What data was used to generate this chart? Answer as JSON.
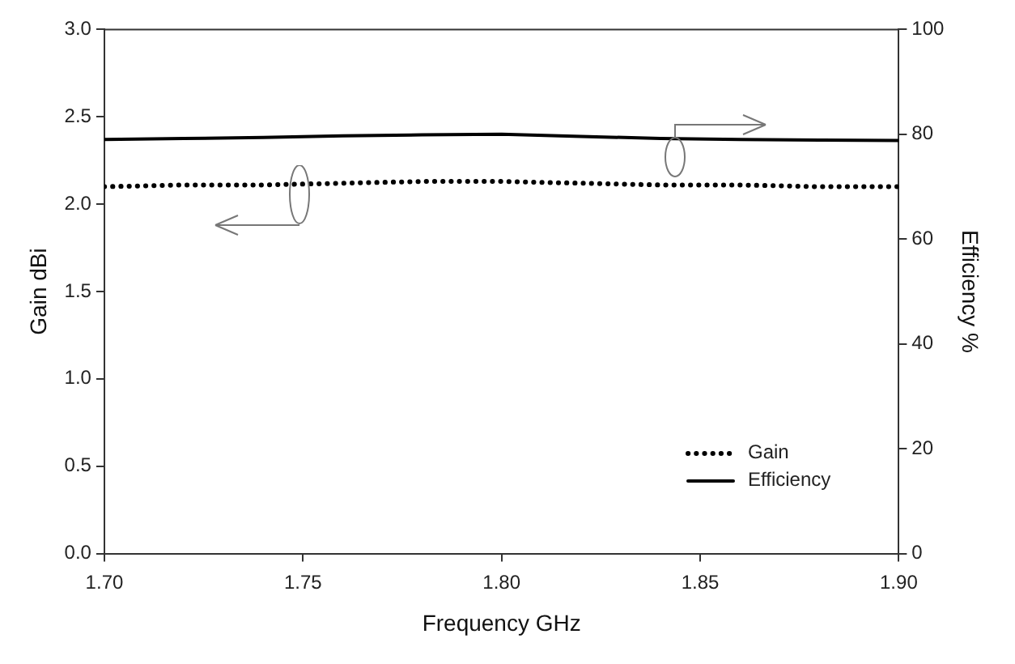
{
  "chart_data": {
    "type": "line",
    "xlabel": "Frequency GHz",
    "ylabel": "Gain dBi",
    "y2label": "Efficiency %",
    "x": [
      1.7,
      1.72,
      1.74,
      1.76,
      1.78,
      1.8,
      1.82,
      1.84,
      1.86,
      1.88,
      1.9
    ],
    "series": [
      {
        "name": "Gain",
        "color": "#000000",
        "line_style": "dotted",
        "values": [
          2.1,
          2.11,
          2.11,
          2.12,
          2.13,
          2.13,
          2.12,
          2.11,
          2.11,
          2.1,
          2.1
        ]
      },
      {
        "name": "Efficiency",
        "color": "#000000",
        "line_style": "solid",
        "axis": "y2",
        "values": [
          79.0,
          79.2,
          79.4,
          79.7,
          79.9,
          80.0,
          79.6,
          79.2,
          79.0,
          78.9,
          78.8
        ]
      }
    ],
    "xlim": [
      1.7,
      1.9
    ],
    "xticks": [
      {
        "value": 1.7,
        "label": "1.70"
      },
      1.75,
      {
        "value": 1.8,
        "label": "1.80"
      },
      1.85,
      {
        "value": 1.9,
        "label": "1.90"
      }
    ],
    "ylim": [
      0,
      3.0
    ],
    "yticks": [
      {
        "value": 0,
        "label": "0.0"
      },
      0.5,
      {
        "value": 1,
        "label": "1.0"
      },
      1.5,
      {
        "value": 2,
        "label": "2.0"
      },
      2.5,
      {
        "value": 3,
        "label": "3.0"
      }
    ],
    "y2lim": [
      0,
      100
    ],
    "y2ticks": [
      0,
      20,
      40,
      60,
      80,
      100
    ],
    "grid": false,
    "legend": "bottom right",
    "marker": "none"
  }
}
